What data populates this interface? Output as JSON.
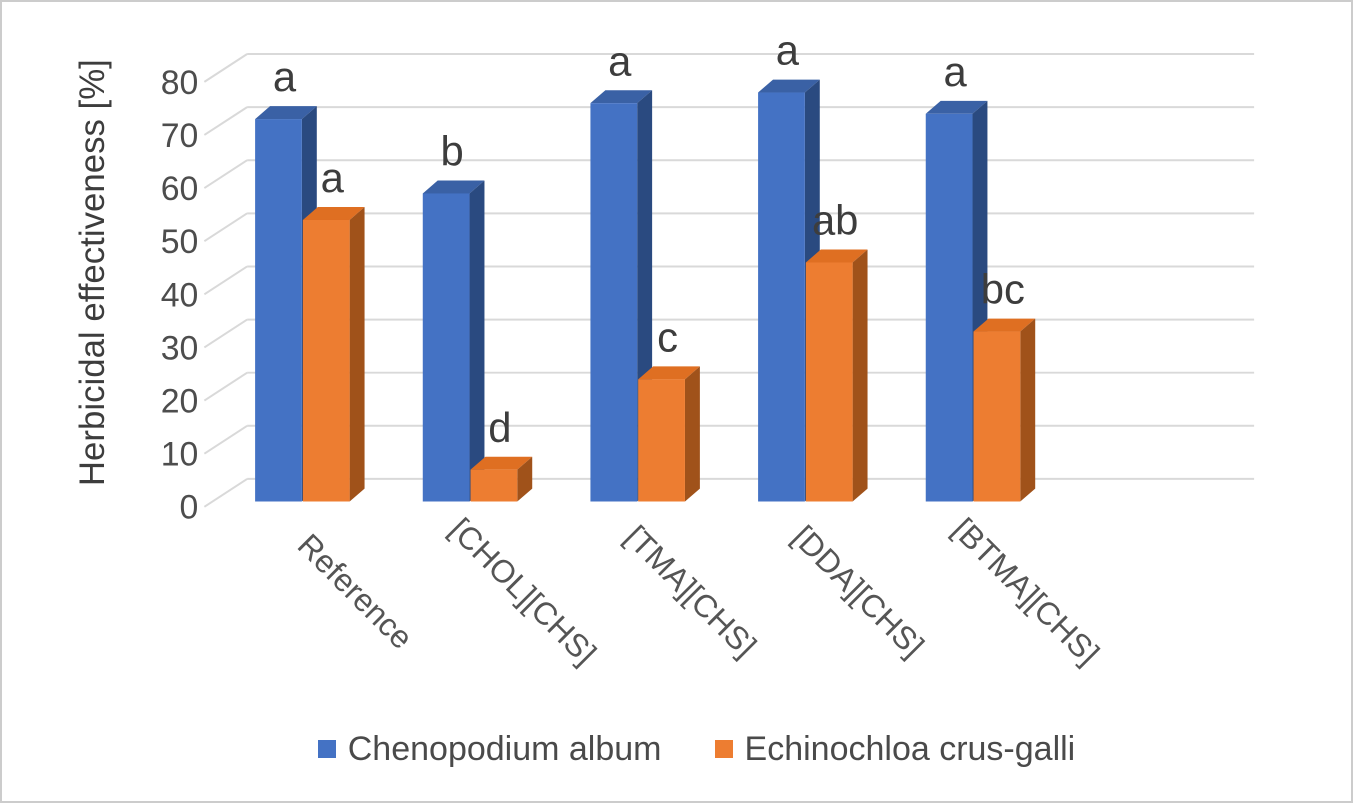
{
  "chart_data": {
    "type": "bar",
    "projection": "3d",
    "title": "",
    "xlabel": "",
    "ylabel": "Herbicidal effectiveness [%]",
    "ylim": [
      0,
      80
    ],
    "yticks": [
      0,
      10,
      20,
      30,
      40,
      50,
      60,
      70,
      80
    ],
    "grid": true,
    "legend_position": "bottom",
    "categories": [
      "Reference",
      "[CHOL][CHS]",
      "[TMA][CHS]",
      "[DDA][CHS]",
      "[BTMA][CHS]"
    ],
    "series": [
      {
        "name": "Chenopodium album",
        "color": "#4472C4",
        "color_top": "#3A61A5",
        "color_side": "#2A4A80",
        "values": [
          72,
          58,
          75,
          77,
          73
        ],
        "annotations": [
          "a",
          "b",
          "a",
          "a",
          "a"
        ]
      },
      {
        "name": "Echinochloa crus-galli",
        "color": "#ED7D31",
        "color_top": "#DF6F22",
        "color_side": "#A0521A",
        "values": [
          53,
          6,
          23,
          45,
          32
        ],
        "annotations": [
          "a",
          "d",
          "c",
          "ab",
          "bc"
        ]
      }
    ],
    "gridline_color": "#D9D9D9"
  }
}
